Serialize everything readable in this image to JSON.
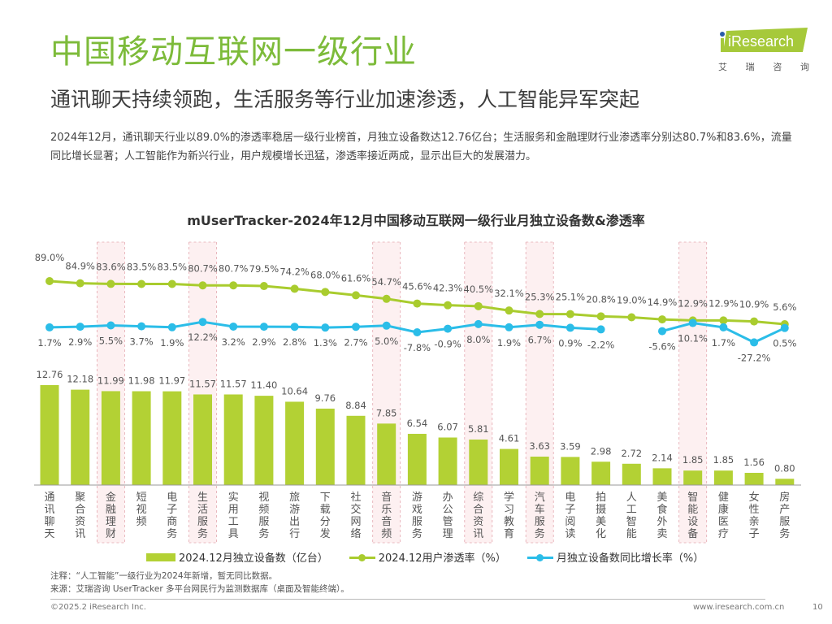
{
  "header": {
    "title": "中国移动互联网一级行业",
    "subtitle": "通讯聊天持续领跑，生活服务等行业加速渗透，人工智能异军突起",
    "description": "2024年12月，通讯聊天行业以89.0%的渗透率稳居一级行业榜首，月独立设备数达12.76亿台；生活服务和金融理财行业渗透率分别达80.7%和83.6%，流量同比增长显著；人工智能作为新兴行业，用户规模增长迅猛，渗透率接近两成，显示出巨大的发展潜力。"
  },
  "logo": {
    "brand": "iResearch",
    "cn_chars": [
      "艾",
      "瑞",
      "咨",
      "询"
    ],
    "brand_color": "#a6c93a"
  },
  "chart_data": {
    "type": "bar",
    "title": "mUserTracker-2024年12月中国移动互联网一级行业月独立设备数&渗透率",
    "categories": [
      "通讯聊天",
      "聚合资讯",
      "金融理财",
      "短视频",
      "电子商务",
      "生活服务",
      "实用工具",
      "视频服务",
      "旅游出行",
      "下载分发",
      "社交网络",
      "音乐音频",
      "游戏服务",
      "办公管理",
      "综合资讯",
      "学习教育",
      "汽车服务",
      "电子阅读",
      "拍摄美化",
      "人工智能",
      "美食外卖",
      "智能设备",
      "健康医疗",
      "女性亲子",
      "房产服务"
    ],
    "highlighted_categories": [
      "金融理财",
      "生活服务",
      "音乐音频",
      "综合资讯",
      "汽车服务",
      "智能设备"
    ],
    "series": [
      {
        "name": "2024.12月独立设备数（亿台）",
        "type": "bar",
        "color": "#b3d134",
        "values": [
          12.76,
          12.18,
          11.99,
          11.98,
          11.97,
          11.57,
          11.57,
          11.4,
          10.64,
          9.76,
          8.84,
          7.85,
          6.54,
          6.07,
          5.81,
          4.61,
          3.63,
          3.59,
          2.98,
          2.72,
          2.14,
          1.85,
          1.85,
          1.56,
          0.8
        ],
        "labels": [
          "12.76",
          "12.18",
          "11.99",
          "11.98",
          "11.97",
          "11.57",
          "11.57",
          "11.40",
          "10.64",
          "9.76",
          "8.84",
          "7.85",
          "6.54",
          "6.07",
          "5.81",
          "4.61",
          "3.63",
          "3.59",
          "2.98",
          "2.72",
          "2.14",
          "1.85",
          "1.85",
          "1.56",
          "0.80"
        ]
      },
      {
        "name": "2024.12用户渗透率（%）",
        "type": "line",
        "color": "#a9cc2e",
        "values": [
          89.0,
          84.9,
          83.6,
          83.5,
          83.5,
          80.7,
          80.7,
          79.5,
          74.2,
          68.0,
          61.6,
          54.7,
          45.6,
          42.3,
          40.5,
          32.1,
          25.3,
          25.1,
          20.8,
          19.0,
          14.9,
          12.9,
          12.9,
          10.9,
          5.6
        ],
        "labels": [
          "89.0%",
          "84.9%",
          "83.6%",
          "83.5%",
          "83.5%",
          "80.7%",
          "80.7%",
          "79.5%",
          "74.2%",
          "68.0%",
          "61.6%",
          "54.7%",
          "45.6%",
          "42.3%",
          "40.5%",
          "32.1%",
          "25.3%",
          "25.1%",
          "20.8%",
          "19.0%",
          "14.9%",
          "12.9%",
          "12.9%",
          "10.9%",
          "5.6%"
        ]
      },
      {
        "name": "月独立设备数同比增长率（%）",
        "type": "line",
        "color": "#2bbde8",
        "values": [
          1.7,
          2.9,
          5.5,
          3.7,
          1.9,
          12.2,
          3.2,
          2.9,
          2.8,
          1.3,
          2.7,
          5.0,
          -7.8,
          -0.9,
          8.0,
          1.9,
          6.7,
          0.9,
          -2.2,
          null,
          -5.6,
          10.1,
          1.7,
          -27.2,
          0.5
        ],
        "labels": [
          "1.7%",
          "2.9%",
          "5.5%",
          "3.7%",
          "1.9%",
          "12.2%",
          "3.2%",
          "2.9%",
          "2.8%",
          "1.3%",
          "2.7%",
          "5.0%",
          "-7.8%",
          "-0.9%",
          "8.0%",
          "1.9%",
          "6.7%",
          "0.9%",
          "-2.2%",
          "",
          "-5.6%",
          "10.1%",
          "1.7%",
          "-27.2%",
          "0.5%"
        ]
      }
    ],
    "xlabel": "",
    "ylabel": "",
    "legend": "bottom",
    "grid": false
  },
  "legend": {
    "bar": "2024.12月独立设备数（亿台）",
    "penetration": "2024.12用户渗透率（%）",
    "growth": "月独立设备数同比增长率（%）"
  },
  "notes": {
    "note": "注释：“人工智能”一级行业为2024年新增，暂无同比数据。",
    "source": "来源：艾瑞咨询 UserTracker 多平台网民行为监测数据库（桌面及智能终端）。"
  },
  "footer": {
    "copyright": "©2025.2 iResearch Inc.",
    "website": "www.iresearch.com.cn",
    "page": "10"
  }
}
